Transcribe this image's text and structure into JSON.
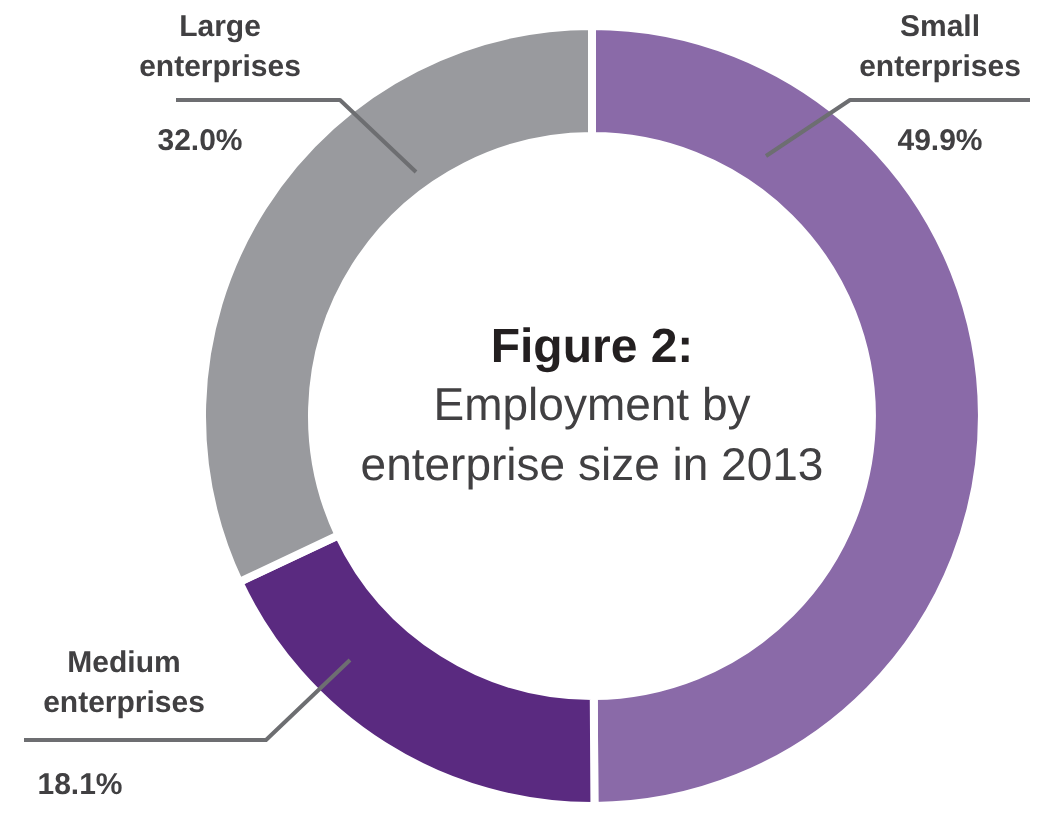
{
  "chart_data": {
    "type": "donut",
    "title": "Figure 2:",
    "subtitle": "Employment by\nenterprise size in 2013",
    "categories": [
      "Small enterprises",
      "Medium enterprises",
      "Large enterprises"
    ],
    "values": [
      49.9,
      18.1,
      32.0
    ],
    "colors": [
      "#8a6aa8",
      "#5a2a80",
      "#999a9e"
    ],
    "value_labels": [
      "49.9%",
      "18.1%",
      "32.0%"
    ]
  }
}
